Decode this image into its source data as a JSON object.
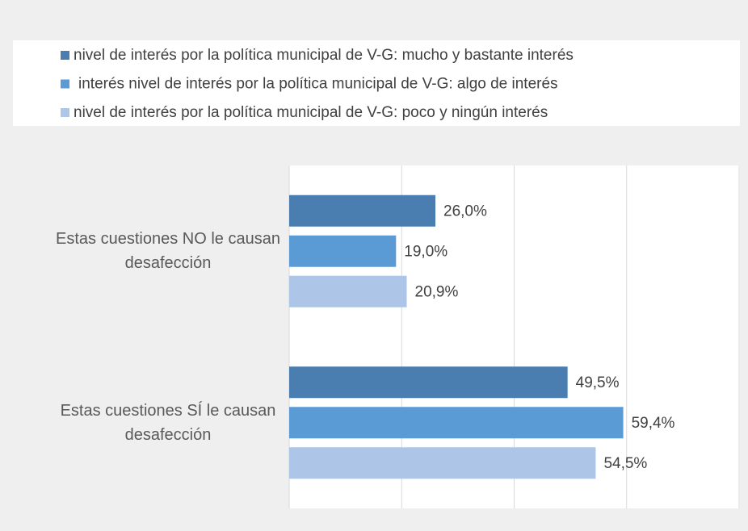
{
  "chart_data": {
    "type": "hbar",
    "categories": [
      "Estas cuestiones NO le causan desafección",
      "Estas cuestiones SÍ le causan desafección"
    ],
    "series": [
      {
        "name": "nivel de interés por la política municipal de V-G: mucho y bastante interés",
        "color": "#4a7eb0",
        "values": [
          26.0,
          49.5
        ],
        "value_labels": [
          "26,0%",
          "49,5%"
        ]
      },
      {
        "name": "interés nivel de interés por la política municipal de V-G: algo de interés",
        "color": "#5b9bd5",
        "values": [
          19.0,
          59.4
        ],
        "value_labels": [
          "19,0%",
          "59,4%"
        ]
      },
      {
        "name": "nivel de interés por la política municipal de V-G: poco y ningún interés",
        "color": "#adc5e6",
        "values": [
          20.9,
          54.5
        ],
        "value_labels": [
          "20,9%",
          "54,5%"
        ]
      }
    ],
    "xlim": [
      0,
      80
    ],
    "xticks": [
      0,
      20,
      40,
      60,
      80
    ],
    "grid": true,
    "legend": "top"
  }
}
